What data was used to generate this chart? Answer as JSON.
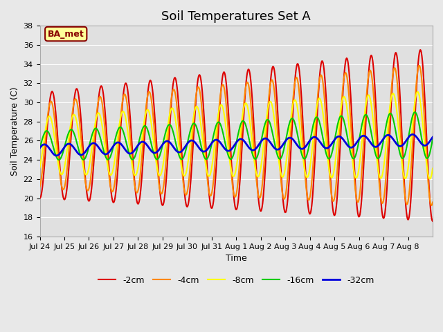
{
  "title": "Soil Temperatures Set A",
  "xlabel": "Time",
  "ylabel": "Soil Temperature (C)",
  "ylim": [
    16,
    38
  ],
  "yticks": [
    16,
    18,
    20,
    22,
    24,
    26,
    28,
    30,
    32,
    34,
    36,
    38
  ],
  "date_labels": [
    "Jul 24",
    "Jul 25",
    "Jul 26",
    "Jul 27",
    "Jul 28",
    "Jul 29",
    "Jul 30",
    "Jul 31",
    "Aug 1",
    "Aug 2",
    "Aug 3",
    "Aug 4",
    "Aug 5",
    "Aug 6",
    "Aug 7",
    "Aug 8"
  ],
  "series_labels": [
    "-2cm",
    "-4cm",
    "-8cm",
    "-16cm",
    "-32cm"
  ],
  "series_colors": [
    "#dd0000",
    "#ff8800",
    "#ffff00",
    "#00cc00",
    "#0000dd"
  ],
  "series_linewidths": [
    1.5,
    1.5,
    1.5,
    1.5,
    2.0
  ],
  "bg_color": "#e8e8e8",
  "plot_bg_color": "#e0e0e0",
  "annotation_text": "BA_met",
  "annotation_bg": "#ffff99",
  "annotation_fg": "#880000",
  "title_fontsize": 13,
  "axis_label_fontsize": 9,
  "tick_fontsize": 8,
  "n_days": 16,
  "pts_per_day": 48
}
